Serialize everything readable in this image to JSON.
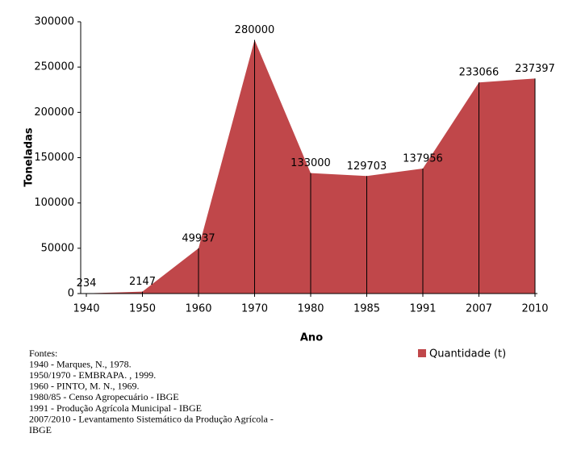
{
  "chart_data": {
    "type": "area",
    "y_label": "Toneladas",
    "x_label": "Ano",
    "categories": [
      "1940",
      "1950",
      "1960",
      "1970",
      "1980",
      "1985",
      "1991",
      "2007",
      "2010"
    ],
    "series": [
      {
        "name": "Quantidade (t)",
        "color": "#c0474a",
        "values": [
          234,
          2147,
          49937,
          280000,
          133000,
          129703,
          137956,
          233066,
          237397
        ]
      }
    ],
    "ylim": [
      0,
      300000
    ],
    "yticks": [
      0,
      50000,
      100000,
      150000,
      200000,
      250000,
      300000
    ],
    "legend": "bottom-right",
    "notes": [
      "Fontes:",
      "1940 - Marques, N., 1978.",
      "1950/1970 - EMBRAPA. ,  1999.",
      "1960 - PINTO, M. N., 1969.",
      "1980/85 - Censo Agropecuário - IBGE",
      "1991 - Produção Agrícola Municipal - IBGE",
      "2007/2010 - Levantamento Sistemático da Produção Agrícola -",
      "IBGE"
    ]
  }
}
